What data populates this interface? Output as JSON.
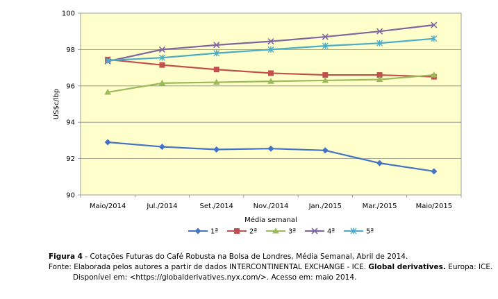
{
  "chart_data": {
    "type": "line",
    "title": "",
    "xlabel": "Média semanal",
    "ylabel": "US$c/lbp",
    "ylim": [
      90,
      100
    ],
    "yticks": [
      90,
      92,
      94,
      96,
      98,
      100
    ],
    "grid": true,
    "legend_position": "bottom",
    "categories": [
      "Maio/2014",
      "Jul./2014",
      "Set./2014",
      "Nov./2014",
      "Jan./2015",
      "Mar./2015",
      "Maio/2015"
    ],
    "series": [
      {
        "name": "1ª",
        "color": "#4472C4",
        "marker": "diamond",
        "values": [
          92.9,
          92.65,
          92.5,
          92.55,
          92.45,
          91.75,
          91.3
        ]
      },
      {
        "name": "2ª",
        "color": "#C0504D",
        "marker": "square",
        "values": [
          97.45,
          97.15,
          96.9,
          96.7,
          96.6,
          96.6,
          96.5
        ]
      },
      {
        "name": "3ª",
        "color": "#9BBB59",
        "marker": "triangle",
        "values": [
          95.65,
          96.15,
          96.2,
          96.25,
          96.3,
          96.35,
          96.6
        ]
      },
      {
        "name": "4ª",
        "color": "#8064A2",
        "marker": "x",
        "values": [
          97.35,
          98.0,
          98.25,
          98.45,
          98.7,
          99.0,
          99.35
        ]
      },
      {
        "name": "5ª",
        "color": "#4BACC6",
        "marker": "star",
        "values": [
          97.4,
          97.55,
          97.8,
          98.0,
          98.2,
          98.35,
          98.6
        ]
      }
    ]
  },
  "caption": {
    "figure_label": "Figura 4",
    "figure_text": " - Cotações Futuras do Café Robusta na Bolsa de Londres, Média Semanal, Abril de 2014.",
    "source_prefix": "Fonte: Elaborada pelos autores a partir de dados INTERCONTINENTAL EXCHANGE - ICE. ",
    "source_bold": "Global derivatives.",
    "source_suffix": " Europa: ICE.",
    "available": "Disponível em: <https://globalderivatives.nyx.com/>. Acesso em: maio 2014."
  }
}
